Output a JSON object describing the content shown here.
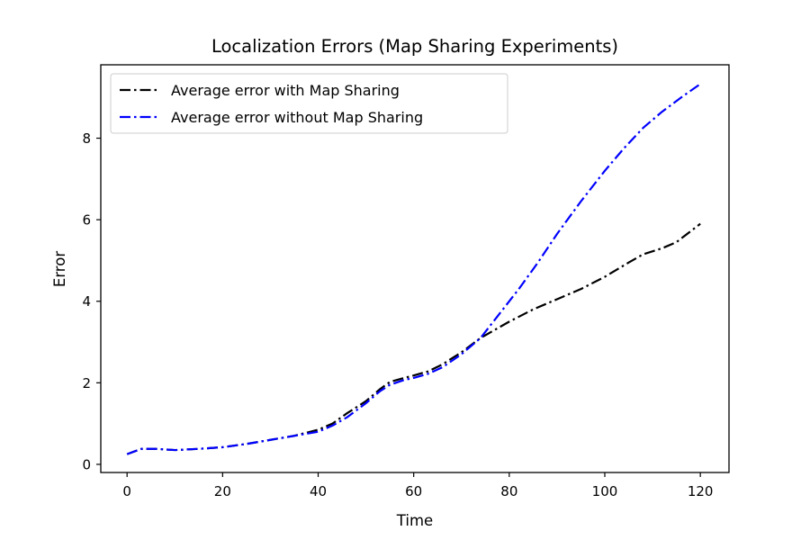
{
  "chart_data": {
    "type": "line",
    "title": "Localization Errors (Map Sharing Experiments)",
    "xlabel": "Time",
    "ylabel": "Error",
    "xlim": [
      -5.5,
      126
    ],
    "ylim": [
      -0.2,
      9.8
    ],
    "xticks": [
      0,
      20,
      40,
      60,
      80,
      100,
      120
    ],
    "yticks": [
      0,
      2,
      4,
      6,
      8
    ],
    "grid": false,
    "legend_position": "upper-left",
    "series": [
      {
        "name": "Average error with Map Sharing",
        "color": "#000000",
        "linestyle": "dash-dot",
        "x": [
          0,
          3,
          6,
          10,
          15,
          20,
          25,
          30,
          35,
          40,
          43,
          46,
          50,
          53,
          55,
          58,
          60,
          63,
          66,
          70,
          74,
          80,
          85,
          90,
          95,
          100,
          105,
          108,
          112,
          115,
          118,
          120
        ],
        "y": [
          0.25,
          0.38,
          0.38,
          0.35,
          0.38,
          0.42,
          0.5,
          0.6,
          0.7,
          0.85,
          1.0,
          1.25,
          1.55,
          1.85,
          2.02,
          2.12,
          2.18,
          2.28,
          2.45,
          2.75,
          3.1,
          3.5,
          3.8,
          4.05,
          4.3,
          4.6,
          4.95,
          5.15,
          5.3,
          5.45,
          5.72,
          5.9
        ]
      },
      {
        "name": "Average error without Map Sharing",
        "color": "#0000ff",
        "linestyle": "dash-dot",
        "x": [
          0,
          3,
          6,
          10,
          15,
          20,
          25,
          30,
          35,
          40,
          43,
          46,
          50,
          53,
          55,
          58,
          60,
          63,
          66,
          70,
          74,
          78,
          82,
          86,
          90,
          95,
          100,
          104,
          108,
          112,
          116,
          120
        ],
        "y": [
          0.25,
          0.38,
          0.38,
          0.35,
          0.38,
          0.42,
          0.5,
          0.6,
          0.7,
          0.8,
          0.95,
          1.15,
          1.5,
          1.8,
          1.95,
          2.07,
          2.12,
          2.22,
          2.38,
          2.7,
          3.1,
          3.7,
          4.3,
          4.95,
          5.65,
          6.45,
          7.2,
          7.75,
          8.25,
          8.65,
          9.0,
          9.33
        ]
      }
    ]
  }
}
